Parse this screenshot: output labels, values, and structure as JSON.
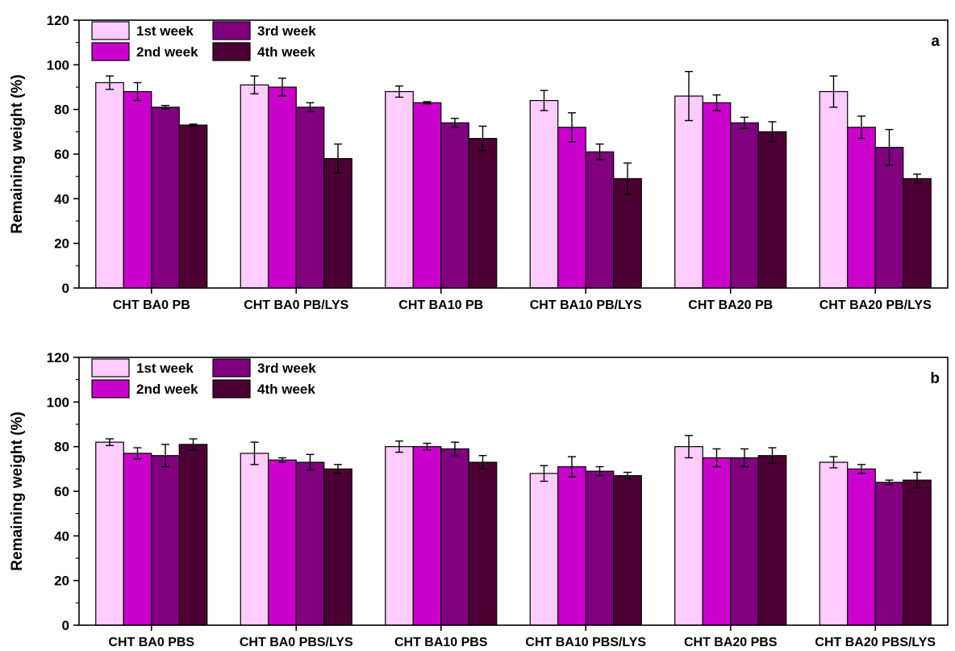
{
  "legend_labels": [
    "1st week",
    "2nd week",
    "3rd week",
    "4th week"
  ],
  "colors": {
    "1st week": "#ffccff",
    "2nd week": "#cc00cc",
    "3rd week": "#800080",
    "4th week": "#4d0033",
    "axis": "#000000"
  },
  "chart_data": [
    {
      "type": "bar",
      "panel_label": "a",
      "ylabel": "Remaining weight (%)",
      "ylim": [
        0,
        120
      ],
      "yticks": [
        0,
        20,
        40,
        60,
        80,
        100,
        120
      ],
      "legend_position": "top-left",
      "grid": false,
      "categories": [
        "CHT BA0 PB",
        "CHT BA0 PB/LYS",
        "CHT BA10 PB",
        "CHT BA10 PB/LYS",
        "CHT BA20 PB",
        "CHT BA20 PB/LYS"
      ],
      "series": [
        {
          "name": "1st week",
          "values": [
            92,
            91,
            88,
            84,
            86,
            88
          ],
          "errors": [
            3,
            4,
            2.5,
            4.5,
            11,
            7
          ]
        },
        {
          "name": "2nd week",
          "values": [
            88,
            90,
            83,
            72,
            83,
            72
          ],
          "errors": [
            4,
            4,
            0.5,
            6.5,
            3.5,
            5
          ]
        },
        {
          "name": "3rd week",
          "values": [
            81,
            81,
            74,
            61,
            74,
            63
          ],
          "errors": [
            0.8,
            2,
            2,
            3.5,
            2.5,
            8
          ]
        },
        {
          "name": "4th week",
          "values": [
            73,
            58,
            67,
            49,
            70,
            49
          ],
          "errors": [
            0.4,
            6.5,
            5.5,
            7,
            4.5,
            2
          ]
        }
      ]
    },
    {
      "type": "bar",
      "panel_label": "b",
      "ylabel": "Remaining weight (%)",
      "ylim": [
        0,
        120
      ],
      "yticks": [
        0,
        20,
        40,
        60,
        80,
        100,
        120
      ],
      "legend_position": "top-left",
      "grid": false,
      "categories": [
        "CHT BA0 PBS",
        "CHT BA0 PBS/LYS",
        "CHT BA10 PBS",
        "CHT BA10 PBS/LYS",
        "CHT BA20 PBS",
        "CHT BA20 PBS/LYS"
      ],
      "series": [
        {
          "name": "1st week",
          "values": [
            82,
            77,
            80,
            68,
            80,
            73
          ],
          "errors": [
            1.5,
            5,
            2.5,
            3.5,
            5,
            2.5
          ]
        },
        {
          "name": "2nd week",
          "values": [
            77,
            74,
            80,
            71,
            75,
            70
          ],
          "errors": [
            2.5,
            1,
            1.5,
            4.5,
            4,
            2
          ]
        },
        {
          "name": "3rd week",
          "values": [
            76,
            73,
            79,
            69,
            75,
            64
          ],
          "errors": [
            5,
            3.5,
            3,
            2,
            4,
            1
          ]
        },
        {
          "name": "4th week",
          "values": [
            81,
            70,
            73,
            67,
            76,
            65
          ],
          "errors": [
            2.5,
            2,
            3,
            1.5,
            3.5,
            3.5
          ]
        }
      ]
    }
  ]
}
